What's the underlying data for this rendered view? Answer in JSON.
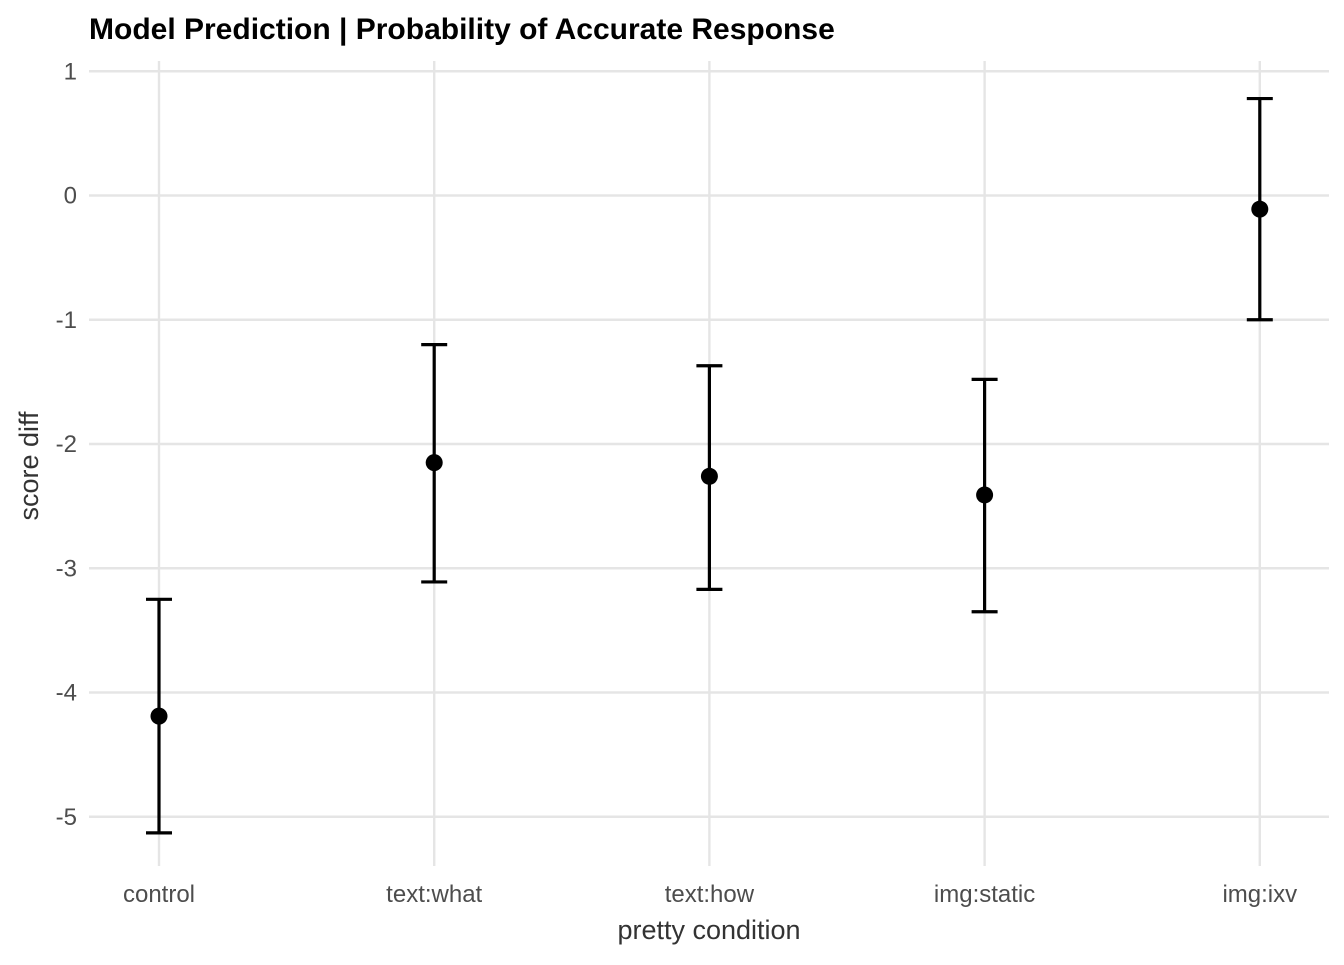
{
  "chart_data": {
    "type": "scatter",
    "subtype": "point-with-errorbars",
    "title": "Model Prediction | Probability of Accurate Response",
    "xlabel": "pretty condition",
    "ylabel": "score diff",
    "categories": [
      "control",
      "text:what",
      "text:how",
      "img:static",
      "img:ixv"
    ],
    "points": [
      {
        "category": "control",
        "estimate": -4.19,
        "lower": -5.13,
        "upper": -3.25
      },
      {
        "category": "text:what",
        "estimate": -2.15,
        "lower": -3.11,
        "upper": -1.2
      },
      {
        "category": "text:how",
        "estimate": -2.26,
        "lower": -3.17,
        "upper": -1.37
      },
      {
        "category": "img:static",
        "estimate": -2.41,
        "lower": -3.35,
        "upper": -1.48
      },
      {
        "category": "img:ixv",
        "estimate": -0.11,
        "lower": -1.0,
        "upper": 0.78
      }
    ],
    "yticks": [
      1,
      0,
      -1,
      -2,
      -3,
      -4,
      -5
    ],
    "ytick_labels": [
      "1",
      "0",
      "-1",
      "-2",
      "-3",
      "-4",
      "-5"
    ],
    "ylim": [
      -5.4,
      1.1
    ],
    "grid": true,
    "legend": "none",
    "colors": {
      "point": "#000000",
      "errorbar": "#000000",
      "grid": "#e5e5e5",
      "background": "#ffffff"
    }
  }
}
